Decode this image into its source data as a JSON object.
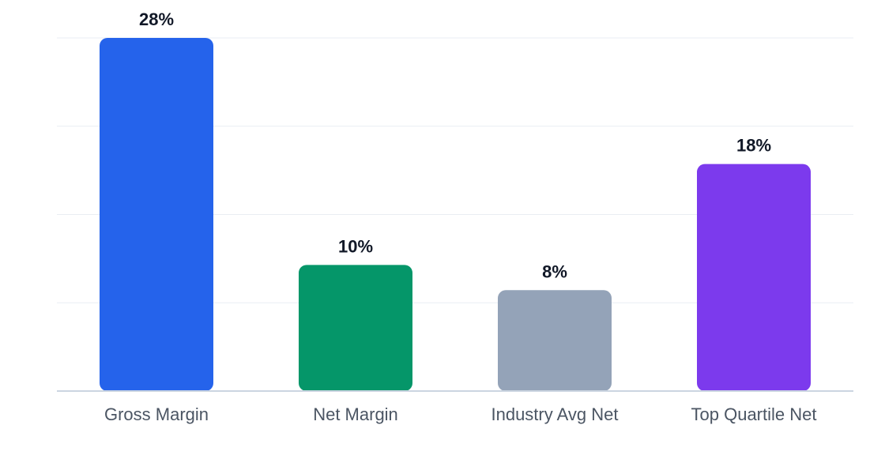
{
  "chart_data": {
    "type": "bar",
    "categories": [
      "Gross Margin",
      "Net Margin",
      "Industry Avg Net",
      "Top Quartile Net"
    ],
    "values": [
      28,
      10,
      8,
      18
    ],
    "value_labels": [
      "28%",
      "10%",
      "8%",
      "18%"
    ],
    "ylim": [
      0,
      28
    ],
    "grid": true,
    "colors": [
      "#2563eb",
      "#059669",
      "#94a3b8",
      "#7c3aed"
    ],
    "title": "",
    "xlabel": "",
    "ylabel": ""
  }
}
